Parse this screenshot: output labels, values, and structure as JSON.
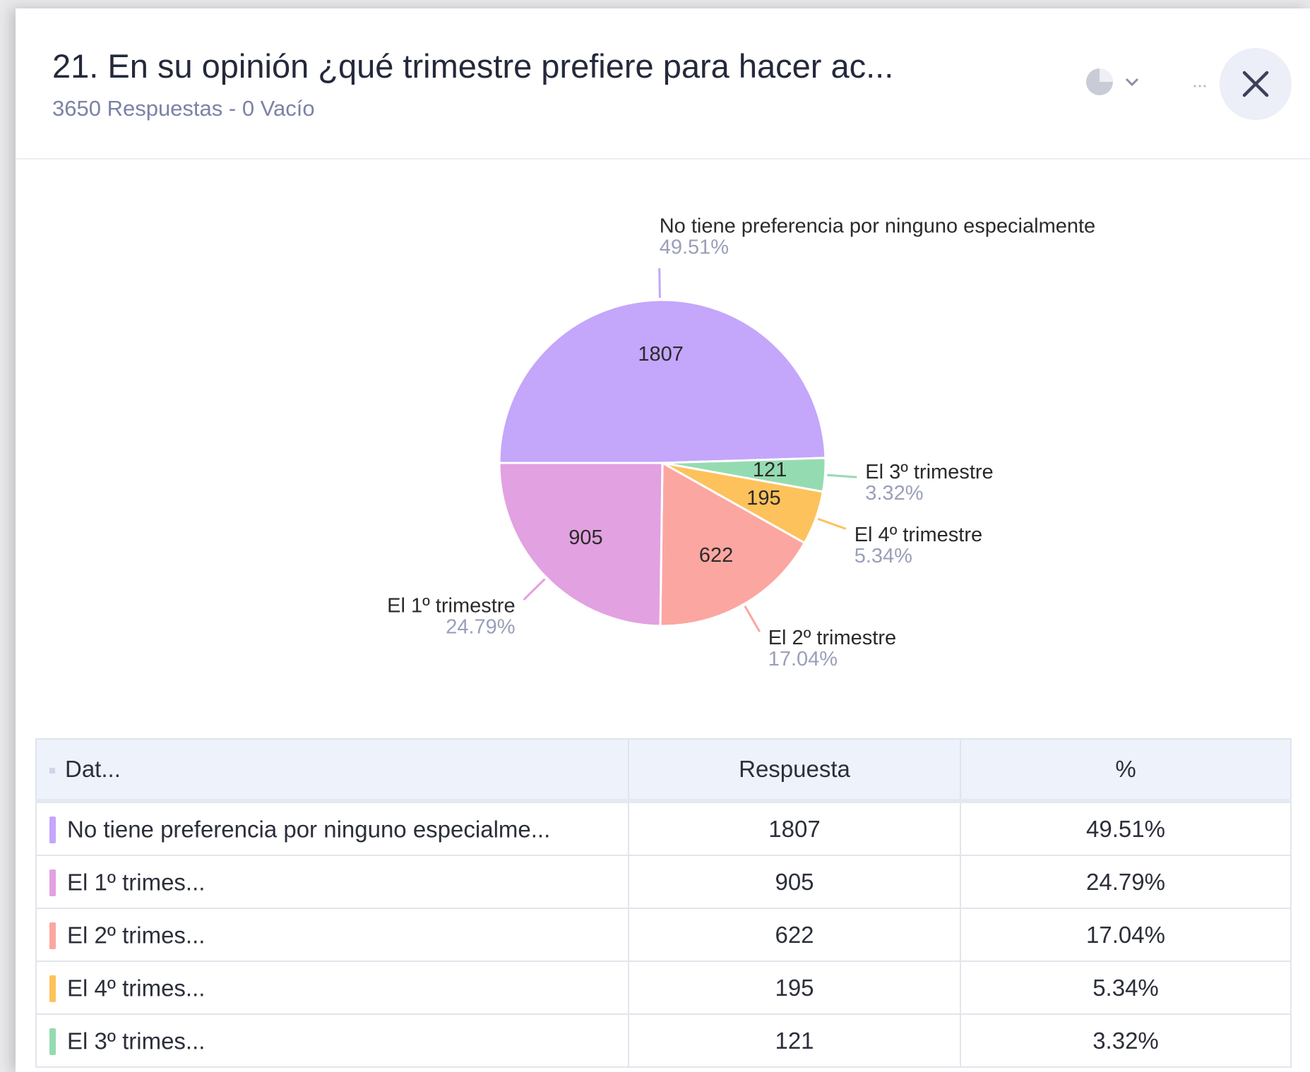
{
  "header": {
    "title": "21. En su opinión ¿qué trimestre prefiere para hacer ac...",
    "subtitle": "3650 Respuestas - 0 Vacío"
  },
  "chart_data": {
    "type": "pie",
    "categories": [
      "No tiene preferencia por ninguno especialmente",
      "El 3º trimestre",
      "El 4º trimestre",
      "El 2º trimestre",
      "El 1º trimestre"
    ],
    "values": [
      1807,
      121,
      195,
      622,
      905
    ],
    "percents": [
      49.51,
      3.32,
      5.34,
      17.04,
      24.79
    ],
    "percent_labels": [
      "49.51%",
      "3.32%",
      "5.34%",
      "17.04%",
      "24.79%"
    ],
    "colors": [
      "#c4a6fb",
      "#95dbb1",
      "#fdc25b",
      "#fca6a1",
      "#e2a1e1"
    ]
  },
  "table": {
    "header": [
      "Dat...",
      "Respuesta",
      "%"
    ],
    "rows": [
      {
        "label": "No tiene preferencia por ninguno especialme...",
        "count": "1807",
        "percent": "49.51%",
        "color": "#c4a6fb"
      },
      {
        "label": "El 1º trimes...",
        "count": "905",
        "percent": "24.79%",
        "color": "#e2a1e1"
      },
      {
        "label": "El 2º trimes...",
        "count": "622",
        "percent": "17.04%",
        "color": "#fca6a1"
      },
      {
        "label": "El 4º trimes...",
        "count": "195",
        "percent": "5.34%",
        "color": "#fdc25b"
      },
      {
        "label": "El 3º trimes...",
        "count": "121",
        "percent": "3.32%",
        "color": "#95dbb1"
      }
    ]
  }
}
